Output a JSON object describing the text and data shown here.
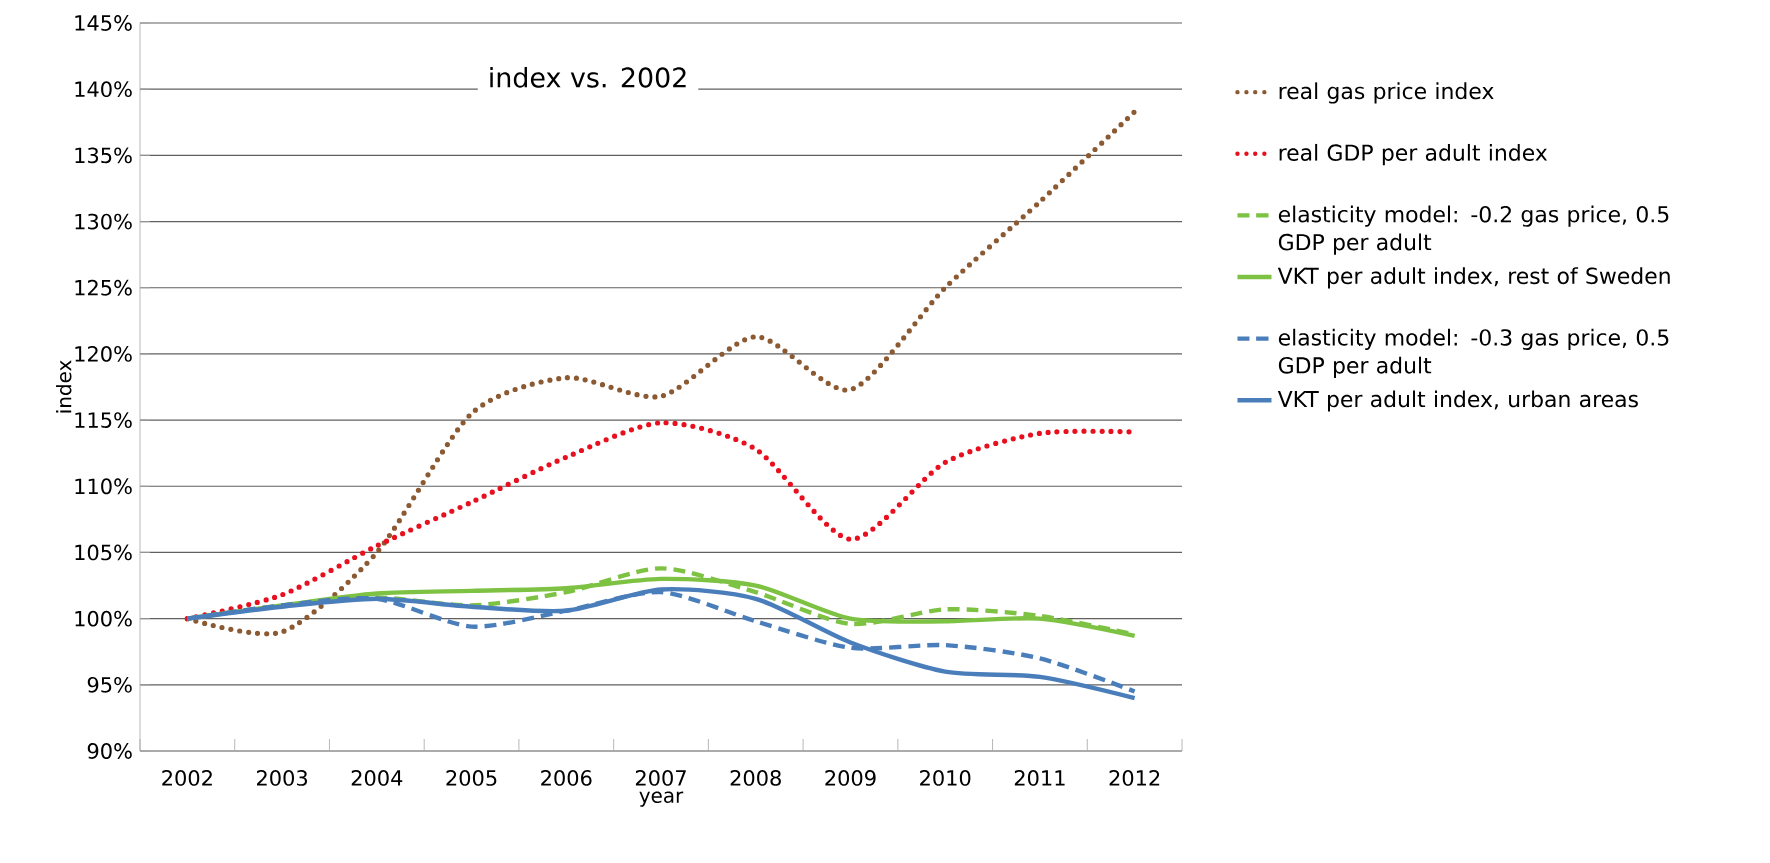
{
  "chart_data": {
    "type": "line",
    "title": "index vs. 2002",
    "xlabel": "year",
    "ylabel": "index",
    "categories": [
      "2002",
      "2003",
      "2004",
      "2005",
      "2006",
      "2007",
      "2008",
      "2009",
      "2010",
      "2011",
      "2012"
    ],
    "ylim": [
      90,
      145
    ],
    "yticks": [
      {
        "value": 90,
        "label": "90%"
      },
      {
        "value": 95,
        "label": "95%"
      },
      {
        "value": 100,
        "label": "100%"
      },
      {
        "value": 105,
        "label": "105%"
      },
      {
        "value": 110,
        "label": "110%"
      },
      {
        "value": 115,
        "label": "115%"
      },
      {
        "value": 120,
        "label": "120%"
      },
      {
        "value": 125,
        "label": "125%"
      },
      {
        "value": 130,
        "label": "130%"
      },
      {
        "value": 135,
        "label": "135%"
      },
      {
        "value": 140,
        "label": "140%"
      },
      {
        "value": 145,
        "label": "145%"
      }
    ],
    "grid": "y",
    "legend": "right",
    "marker": "none",
    "series": [
      {
        "name": "real gas price index",
        "color": "#8c5a32",
        "line_style": "dotted",
        "values": [
          100,
          99.0,
          105.0,
          115.5,
          118.2,
          116.8,
          121.3,
          117.3,
          125.0,
          131.5,
          138.3
        ]
      },
      {
        "name": "real GDP per adult index",
        "color": "#e8101e",
        "line_style": "dotted",
        "values": [
          100,
          101.8,
          105.5,
          108.8,
          112.2,
          114.8,
          112.8,
          106.0,
          111.8,
          114.0,
          114.1
        ]
      },
      {
        "name": "elasticity model: -0.2 gas price, 0.5 GDP per adult",
        "color": "#7dc242",
        "line_style": "dashed",
        "values": [
          100,
          101.0,
          101.6,
          101.0,
          102.0,
          103.8,
          102.0,
          99.6,
          100.7,
          100.2,
          98.8
        ]
      },
      {
        "name": "VKT per adult index, rest of Sweden",
        "color": "#7dc242",
        "line_style": "solid",
        "values": [
          100,
          101.0,
          101.9,
          102.1,
          102.3,
          103.0,
          102.5,
          100.0,
          99.8,
          100.0,
          98.7
        ]
      },
      {
        "name": "elasticity model: -0.3 gas price, 0.5 GDP per adult",
        "color": "#4a7ebb",
        "line_style": "dashed",
        "values": [
          100,
          101.0,
          101.5,
          99.4,
          100.6,
          102.0,
          99.8,
          97.8,
          98.0,
          97.0,
          94.5
        ]
      },
      {
        "name": "VKT per adult index, urban areas",
        "color": "#4a7ebb",
        "line_style": "solid",
        "values": [
          100,
          100.9,
          101.5,
          100.9,
          100.6,
          102.2,
          101.5,
          98.2,
          96.0,
          95.6,
          94.0
        ]
      }
    ]
  }
}
